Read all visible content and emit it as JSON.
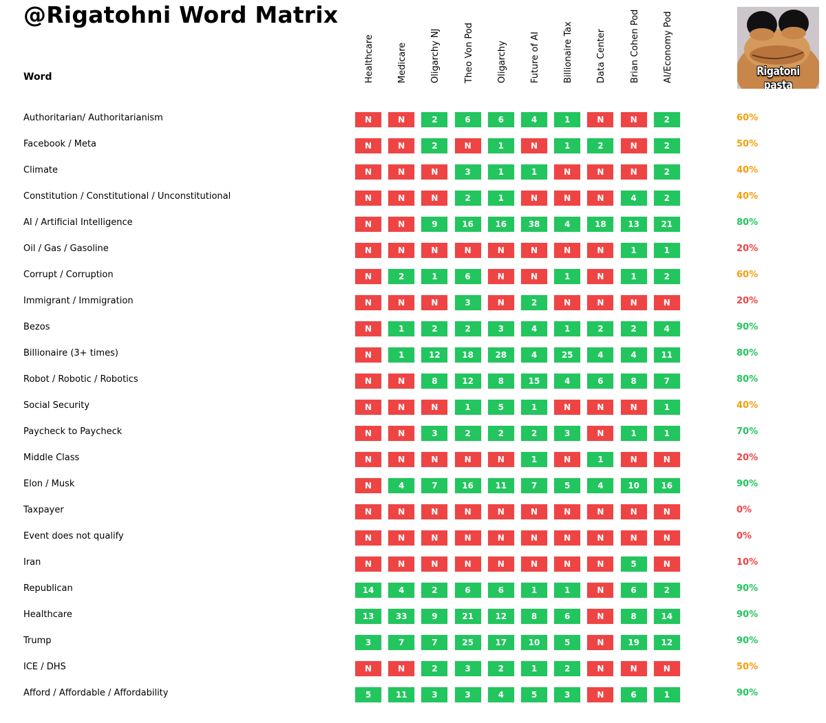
{
  "title": "@Rigatohni Word Matrix",
  "word_header": "Word",
  "avatar": {
    "caption": "Rigatoni pasta",
    "icon": "frog-avatar"
  },
  "colors": {
    "green": "#22c55e",
    "red": "#ef4444",
    "orange": "#f59e0b"
  },
  "chart_data": {
    "type": "table",
    "columns": [
      "Healthcare",
      "Medicare",
      "Oligarchy NJ",
      "Theo Von Pod",
      "Oligarchy",
      "Future of AI",
      "Billionaire Tax",
      "Data Center",
      "Brian Cohen Pod",
      "AI/Economy Pod"
    ],
    "rows": [
      {
        "word": "Authoritarian/ Authoritarianism",
        "values": [
          "N",
          "N",
          "2",
          "6",
          "6",
          "4",
          "1",
          "N",
          "N",
          "2"
        ],
        "percent": "60%"
      },
      {
        "word": "Facebook / Meta",
        "values": [
          "N",
          "N",
          "2",
          "N",
          "1",
          "N",
          "1",
          "2",
          "N",
          "2"
        ],
        "percent": "50%"
      },
      {
        "word": "Climate",
        "values": [
          "N",
          "N",
          "N",
          "3",
          "1",
          "1",
          "N",
          "N",
          "N",
          "2"
        ],
        "percent": "40%"
      },
      {
        "word": "Constitution / Constitutional / Unconstitutional",
        "values": [
          "N",
          "N",
          "N",
          "2",
          "1",
          "N",
          "N",
          "N",
          "4",
          "2"
        ],
        "percent": "40%"
      },
      {
        "word": "AI / Artificial Intelligence",
        "values": [
          "N",
          "N",
          "9",
          "16",
          "16",
          "38",
          "4",
          "18",
          "13",
          "21"
        ],
        "percent": "80%"
      },
      {
        "word": "Oil / Gas / Gasoline",
        "values": [
          "N",
          "N",
          "N",
          "N",
          "N",
          "N",
          "N",
          "N",
          "1",
          "1"
        ],
        "percent": "20%"
      },
      {
        "word": "Corrupt / Corruption",
        "values": [
          "N",
          "2",
          "1",
          "6",
          "N",
          "N",
          "1",
          "N",
          "1",
          "2"
        ],
        "percent": "60%"
      },
      {
        "word": "Immigrant / Immigration",
        "values": [
          "N",
          "N",
          "N",
          "3",
          "N",
          "2",
          "N",
          "N",
          "N",
          "N"
        ],
        "percent": "20%"
      },
      {
        "word": "Bezos",
        "values": [
          "N",
          "1",
          "2",
          "2",
          "3",
          "4",
          "1",
          "2",
          "2",
          "4"
        ],
        "percent": "90%"
      },
      {
        "word": "Billionaire (3+ times)",
        "values": [
          "N",
          "1",
          "12",
          "18",
          "28",
          "4",
          "25",
          "4",
          "4",
          "11"
        ],
        "percent": "80%"
      },
      {
        "word": "Robot / Robotic / Robotics",
        "values": [
          "N",
          "N",
          "8",
          "12",
          "8",
          "15",
          "4",
          "6",
          "8",
          "7"
        ],
        "percent": "80%"
      },
      {
        "word": "Social Security",
        "values": [
          "N",
          "N",
          "N",
          "1",
          "5",
          "1",
          "N",
          "N",
          "N",
          "1"
        ],
        "percent": "40%"
      },
      {
        "word": "Paycheck to Paycheck",
        "values": [
          "N",
          "N",
          "3",
          "2",
          "2",
          "2",
          "3",
          "N",
          "1",
          "1"
        ],
        "percent": "70%"
      },
      {
        "word": "Middle Class",
        "values": [
          "N",
          "N",
          "N",
          "N",
          "N",
          "1",
          "N",
          "1",
          "N",
          "N"
        ],
        "percent": "20%"
      },
      {
        "word": "Elon / Musk",
        "values": [
          "N",
          "4",
          "7",
          "16",
          "11",
          "7",
          "5",
          "4",
          "10",
          "16"
        ],
        "percent": "90%"
      },
      {
        "word": "Taxpayer",
        "values": [
          "N",
          "N",
          "N",
          "N",
          "N",
          "N",
          "N",
          "N",
          "N",
          "N"
        ],
        "percent": "0%"
      },
      {
        "word": "Event does not qualify",
        "values": [
          "N",
          "N",
          "N",
          "N",
          "N",
          "N",
          "N",
          "N",
          "N",
          "N"
        ],
        "percent": "0%"
      },
      {
        "word": "Iran",
        "values": [
          "N",
          "N",
          "N",
          "N",
          "N",
          "N",
          "N",
          "N",
          "5",
          "N"
        ],
        "percent": "10%"
      },
      {
        "word": "Republican",
        "values": [
          "14",
          "4",
          "2",
          "6",
          "6",
          "1",
          "1",
          "N",
          "6",
          "2"
        ],
        "percent": "90%"
      },
      {
        "word": "Healthcare",
        "values": [
          "13",
          "33",
          "9",
          "21",
          "12",
          "8",
          "6",
          "N",
          "8",
          "14"
        ],
        "percent": "90%"
      },
      {
        "word": "Trump",
        "values": [
          "3",
          "7",
          "7",
          "25",
          "17",
          "10",
          "5",
          "N",
          "19",
          "12"
        ],
        "percent": "90%"
      },
      {
        "word": "ICE / DHS",
        "values": [
          "N",
          "N",
          "2",
          "3",
          "2",
          "1",
          "2",
          "N",
          "N",
          "N"
        ],
        "percent": "50%"
      },
      {
        "word": "Afford / Affordable / Affordability",
        "values": [
          "5",
          "11",
          "3",
          "3",
          "4",
          "5",
          "3",
          "N",
          "6",
          "1"
        ],
        "percent": "90%"
      }
    ]
  }
}
